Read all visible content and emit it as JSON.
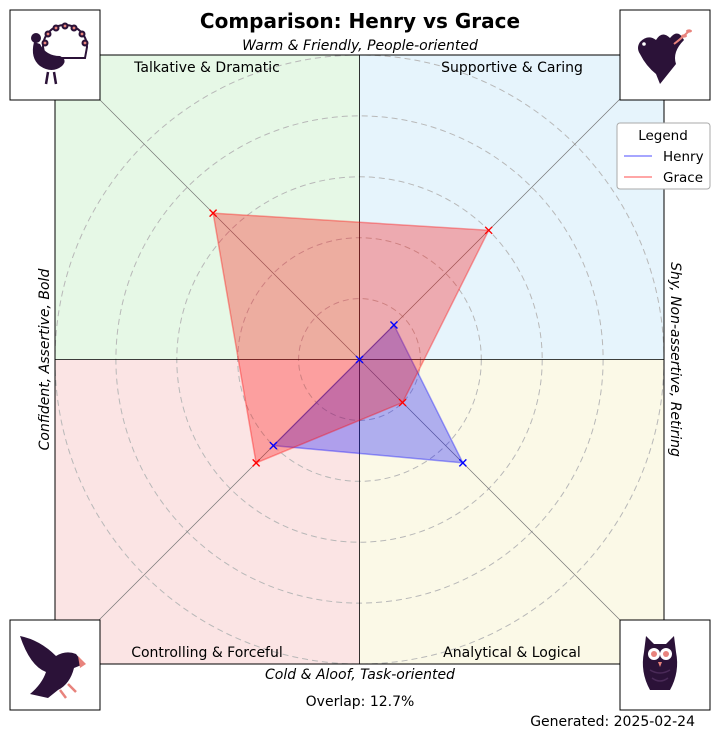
{
  "chart_data": {
    "type": "radar",
    "title": "Comparison: Henry vs Grace",
    "axis_labels": {
      "top": "Warm & Friendly, People-oriented",
      "bottom": "Cold & Aloof, Task-oriented",
      "left": "Confident, Assertive, Bold",
      "right": "Shy, Non-assertive, Retiring"
    },
    "quadrants": [
      {
        "key": "top-left",
        "label": "Talkative & Dramatic",
        "color": "#e6f8e6",
        "icon": "peacock-icon"
      },
      {
        "key": "top-right",
        "label": "Supportive & Caring",
        "color": "#e6f4fc",
        "icon": "dove-icon"
      },
      {
        "key": "bottom-left",
        "label": "Controlling & Forceful",
        "color": "#fbe4e4",
        "icon": "eagle-icon"
      },
      {
        "key": "bottom-right",
        "label": "Analytical & Logical",
        "color": "#fbf9e7",
        "icon": "owl-icon"
      }
    ],
    "axes": [
      "Talkative & Dramatic",
      "Supportive & Caring",
      "Analytical & Logical",
      "Controlling & Forceful"
    ],
    "range": [
      0,
      5
    ],
    "rings": [
      1,
      2,
      3,
      4,
      5
    ],
    "grid": true,
    "legend": {
      "title": "Legend",
      "position": "top-right"
    },
    "series": [
      {
        "name": "Henry",
        "color": "#0000ff",
        "values": [
          0.0,
          0.8,
          2.4,
          2.0
        ]
      },
      {
        "name": "Grace",
        "color": "#ff0000",
        "values": [
          3.4,
          3.0,
          1.0,
          2.4
        ]
      }
    ],
    "overlap_text": "Overlap: 12.7%",
    "generated_text": "Generated: 2025-02-24"
  }
}
